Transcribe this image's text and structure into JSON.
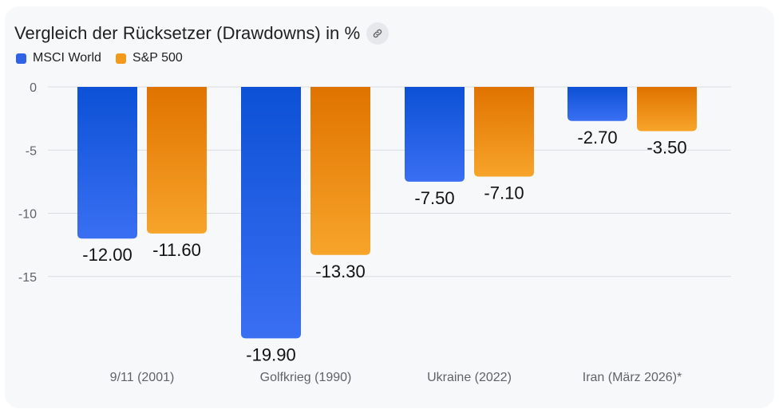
{
  "colors": {
    "msci_top": "#0c51d6",
    "msci_bottom": "#3a6ff2",
    "sp_top": "#e07300",
    "sp_bottom": "#f7a42a",
    "grid": "#dadce0"
  },
  "header": {
    "title": "Vergleich der Rücksetzer (Drawdowns) in %",
    "link_icon": "link-icon"
  },
  "chart_data": {
    "type": "bar",
    "title": "Vergleich der Rücksetzer (Drawdowns) in %",
    "categories": [
      "9/11 (2001)",
      "Golfkrieg (1990)",
      "Ukraine (2022)",
      "Iran (März 2026)*"
    ],
    "series": [
      {
        "name": "MSCI World",
        "values": [
          -12.0,
          -19.9,
          -7.5,
          -2.7
        ],
        "labels": [
          "-12.00",
          "-19.90",
          "-7.50",
          "-2.70"
        ]
      },
      {
        "name": "S&P 500",
        "values": [
          -11.6,
          -13.3,
          -7.1,
          -3.5
        ],
        "labels": [
          "-11.60",
          "-13.30",
          "-7.10",
          "-3.50"
        ]
      }
    ],
    "yticks": [
      0,
      -5,
      -10,
      -15
    ],
    "ytick_labels": [
      "0",
      "-5",
      "-10",
      "-15"
    ],
    "ylim": [
      -20,
      0
    ],
    "xlabel": "",
    "ylabel": "",
    "grid": true,
    "legend_position": "top-left"
  }
}
